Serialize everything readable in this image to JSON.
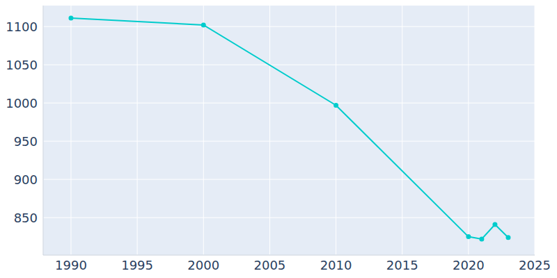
{
  "chart_data": {
    "type": "line",
    "x": [
      1990,
      2000,
      2010,
      2020,
      2021,
      2022,
      2023
    ],
    "values": [
      1111,
      1102,
      997,
      825,
      822,
      841,
      824
    ],
    "color": "#00cccc",
    "xlim": [
      1987.9,
      2025
    ],
    "xticks": [
      1990,
      1995,
      2000,
      2005,
      2010,
      2015,
      2020,
      2025
    ],
    "ylim": [
      801,
      1132
    ],
    "yticks": [
      850,
      900,
      950,
      1000,
      1050,
      1100
    ],
    "grid": true,
    "marker": "circle"
  }
}
